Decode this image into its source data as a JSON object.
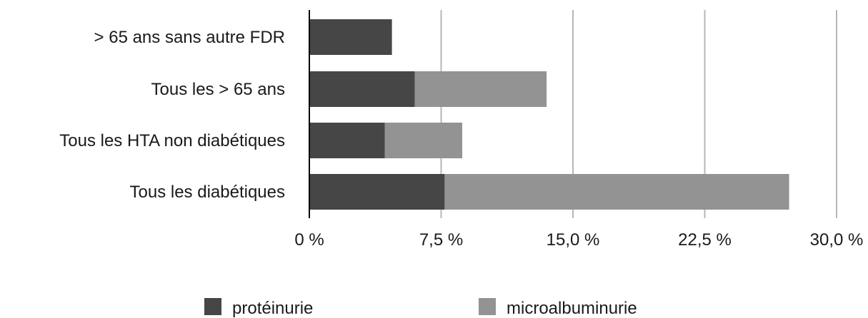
{
  "chart_data": {
    "type": "bar",
    "orientation": "horizontal",
    "stacked": true,
    "categories": [
      "> 65 ans sans autre FDR",
      "Tous les > 65 ans",
      "Tous les HTA non diabétiques",
      "Tous les diabétiques"
    ],
    "series": [
      {
        "name": "protéinurie",
        "color": "#464646",
        "values": [
          4.7,
          6.0,
          4.3,
          7.7
        ]
      },
      {
        "name": "microalbuminurie",
        "color": "#939393",
        "values": [
          0,
          7.5,
          4.4,
          19.6
        ]
      }
    ],
    "xlim": [
      0,
      30
    ],
    "x_ticks": [
      0,
      7.5,
      15,
      22.5,
      30
    ],
    "x_tick_labels": [
      "0 %",
      "7,5 %",
      "15,0 %",
      "22,5 %",
      "30,0 %"
    ],
    "grid": "vertical",
    "legend_position": "bottom"
  }
}
